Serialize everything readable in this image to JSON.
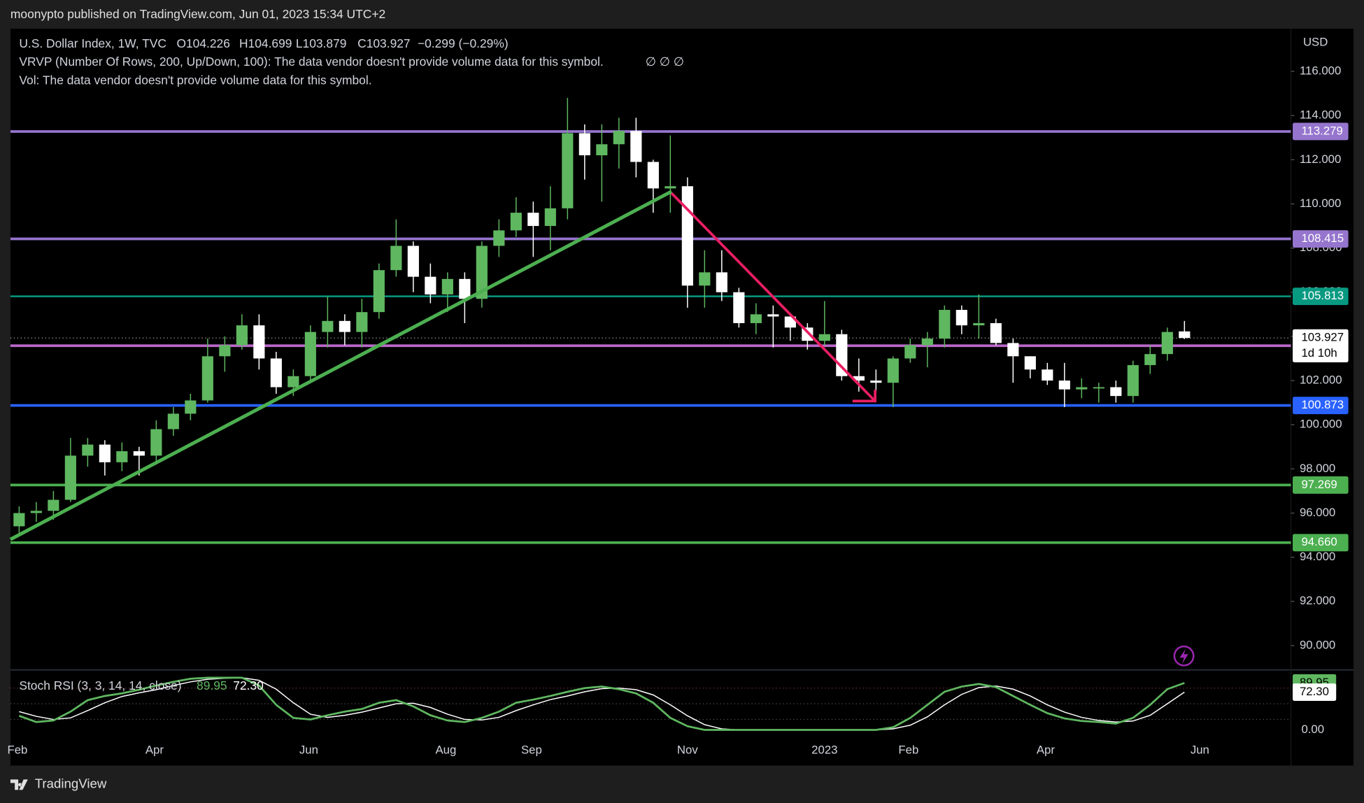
{
  "header": {
    "publisher": "moonypto published on TradingView.com, Jun 01, 2023 15:34 UTC+2",
    "symbol": "U.S. Dollar Index, 1W, TVC",
    "ohlc": [
      "O104.226",
      "H104.699",
      "L103.879",
      "C103.927"
    ],
    "change": "−0.299 (−0.29%)",
    "vrvp": "VRVP (Number Of Rows, 200, Up/Down, 100): The data vendor doesn't provide volume data for this symbol.",
    "vrvp_icons": "∅  ∅  ∅",
    "vol": "Vol: The data vendor doesn't provide volume data for this symbol.",
    "currency": "USD"
  },
  "footer": {
    "brand": "TradingView"
  },
  "chart_data": {
    "type": "candlestick",
    "up_color": "#5fb760",
    "down_color": "#ffffff",
    "x_labels": [
      "Feb",
      "Apr",
      "Jun",
      "Aug",
      "Sep",
      "Nov",
      "2023",
      "Feb",
      "Apr",
      "Jun"
    ],
    "open": [
      95.4,
      96.0,
      96.1,
      96.6,
      98.6,
      99.1,
      98.3,
      98.8,
      98.6,
      99.8,
      100.5,
      101.1,
      103.1,
      103.6,
      104.5,
      103.0,
      101.7,
      102.2,
      104.2,
      104.7,
      104.2,
      105.1,
      107.0,
      108.1,
      106.7,
      105.9,
      106.6,
      105.7,
      108.1,
      108.8,
      109.6,
      109.0,
      109.8,
      113.2,
      112.2,
      112.7,
      113.3,
      111.9,
      110.7,
      110.8,
      106.3,
      106.9,
      106.0,
      104.6,
      105.0,
      104.9,
      104.4,
      103.8,
      104.1,
      102.2,
      102.0,
      101.9,
      103.0,
      103.6,
      103.9,
      105.2,
      104.5,
      104.6,
      103.7,
      103.1,
      102.5,
      102.0,
      101.6,
      101.7,
      101.7,
      101.3,
      102.7,
      103.2,
      104.226
    ],
    "high": [
      96.3,
      96.5,
      97.0,
      99.4,
      99.4,
      99.3,
      99.2,
      99.0,
      100.2,
      100.8,
      101.4,
      103.9,
      104.0,
      105.0,
      105.0,
      103.3,
      102.5,
      104.5,
      105.8,
      105.0,
      105.7,
      107.3,
      109.3,
      108.3,
      107.3,
      106.9,
      106.9,
      108.3,
      109.3,
      110.3,
      110.1,
      110.8,
      114.8,
      113.6,
      113.6,
      113.9,
      113.9,
      112.0,
      113.1,
      111.2,
      107.9,
      107.9,
      106.2,
      105.5,
      105.4,
      104.9,
      104.6,
      105.6,
      104.3,
      103.0,
      102.5,
      103.1,
      103.9,
      104.2,
      105.4,
      105.4,
      105.9,
      104.8,
      103.9,
      103.1,
      102.8,
      102.8,
      102.1,
      101.9,
      102.0,
      102.9,
      103.6,
      104.4,
      104.699
    ],
    "low": [
      95.1,
      95.6,
      95.7,
      96.5,
      98.1,
      97.7,
      97.9,
      97.7,
      98.2,
      99.5,
      100.2,
      101.0,
      102.4,
      103.4,
      102.5,
      101.4,
      101.3,
      101.9,
      103.5,
      103.6,
      103.5,
      104.8,
      106.7,
      106.0,
      105.5,
      105.1,
      104.6,
      105.3,
      107.6,
      108.5,
      107.6,
      107.9,
      109.3,
      111.1,
      110.1,
      111.6,
      111.2,
      109.6,
      109.6,
      105.3,
      105.3,
      105.6,
      104.4,
      104.1,
      103.5,
      103.8,
      103.4,
      103.6,
      102.0,
      101.5,
      101.5,
      100.8,
      102.8,
      102.6,
      103.5,
      104.1,
      103.9,
      103.6,
      101.9,
      102.1,
      101.8,
      100.8,
      101.2,
      101.0,
      101.0,
      101.0,
      102.3,
      102.9,
      103.879
    ],
    "close": [
      96.0,
      96.1,
      96.6,
      98.6,
      99.1,
      98.3,
      98.8,
      98.6,
      99.8,
      100.5,
      101.1,
      103.1,
      103.6,
      104.5,
      103.0,
      101.7,
      102.2,
      104.2,
      104.7,
      104.2,
      105.1,
      107.0,
      108.1,
      106.7,
      105.9,
      106.6,
      105.7,
      108.1,
      108.8,
      109.6,
      109.0,
      109.8,
      113.2,
      112.2,
      112.7,
      113.3,
      111.9,
      110.7,
      110.8,
      106.3,
      106.9,
      106.0,
      104.6,
      105.0,
      104.9,
      104.4,
      103.8,
      104.1,
      102.2,
      102.0,
      101.9,
      103.0,
      103.6,
      103.9,
      105.2,
      104.5,
      104.6,
      103.7,
      103.1,
      102.5,
      102.0,
      101.6,
      101.7,
      101.7,
      101.3,
      102.7,
      103.2,
      104.2,
      103.927
    ],
    "ylim": [
      88.9,
      117.93
    ],
    "yticks": [
      {
        "value": 116,
        "label": "116.000"
      },
      {
        "value": 114,
        "label": "114.000"
      },
      {
        "value": 112,
        "label": "112.000"
      },
      {
        "value": 110,
        "label": "110.000"
      },
      {
        "value": 108,
        "label": "108.000"
      },
      {
        "value": 106,
        "label": "106.000"
      },
      {
        "value": 104,
        "label": "104.000"
      },
      {
        "value": 102,
        "label": "102.000"
      },
      {
        "value": 100,
        "label": "100.000"
      },
      {
        "value": 98,
        "label": "98.000"
      },
      {
        "value": 96,
        "label": "96.000"
      },
      {
        "value": 94,
        "label": "94.000"
      },
      {
        "value": 92,
        "label": "92.000"
      },
      {
        "value": 90,
        "label": "90.000"
      }
    ],
    "levels": [
      {
        "price": 113.279,
        "color": "#9575cd"
      },
      {
        "price": 108.415,
        "color": "#9575cd"
      },
      {
        "price": 105.813,
        "color": "#089981"
      },
      {
        "price": 103.577,
        "color": "#ba68c8"
      },
      {
        "price": 100.873,
        "color": "#2962ff"
      },
      {
        "price": 97.269,
        "color": "#4caf50"
      },
      {
        "price": 94.66,
        "label": "94.660",
        "color": "#4caf50"
      }
    ],
    "last_price": 103.927,
    "countdown": "1d 10h",
    "stoch": {
      "title": "Stoch RSI (3, 3, 14, 14, close)",
      "k_label": "89.95",
      "d_label": "72.30",
      "ylim": [
        -68.3,
        115
      ],
      "yticks": [
        {
          "value": 0,
          "label": "0.00"
        }
      ],
      "bands": [
        80,
        50,
        20
      ],
      "k": {
        "color": "#5fb760",
        "values": [
          27,
          15,
          18,
          35,
          57,
          65,
          70,
          77,
          85,
          92,
          98,
          100,
          100,
          100,
          85,
          48,
          23,
          20,
          28,
          35,
          40,
          52,
          57,
          45,
          28,
          18,
          15,
          23,
          35,
          52,
          58,
          65,
          73,
          80,
          83,
          78,
          70,
          52,
          23,
          7,
          0,
          0,
          0,
          0,
          0,
          0,
          0,
          0,
          0,
          0,
          0,
          5,
          23,
          48,
          73,
          83,
          88,
          82,
          65,
          48,
          32,
          22,
          17,
          15,
          12,
          23,
          48,
          78,
          89.95
        ]
      },
      "d": {
        "color": "#ffffff",
        "values": [
          35,
          26,
          20,
          23,
          37,
          52,
          64,
          71,
          77,
          85,
          92,
          97,
          99,
          100,
          95,
          78,
          52,
          30,
          24,
          28,
          34,
          42,
          50,
          51,
          43,
          30,
          20,
          19,
          24,
          37,
          48,
          58,
          65,
          73,
          79,
          80,
          77,
          67,
          48,
          27,
          10,
          2,
          0,
          0,
          0,
          0,
          0,
          0,
          0,
          0,
          0,
          2,
          9,
          25,
          48,
          68,
          81,
          84,
          78,
          65,
          48,
          34,
          24,
          18,
          15,
          17,
          28,
          50,
          72.3
        ]
      }
    }
  }
}
